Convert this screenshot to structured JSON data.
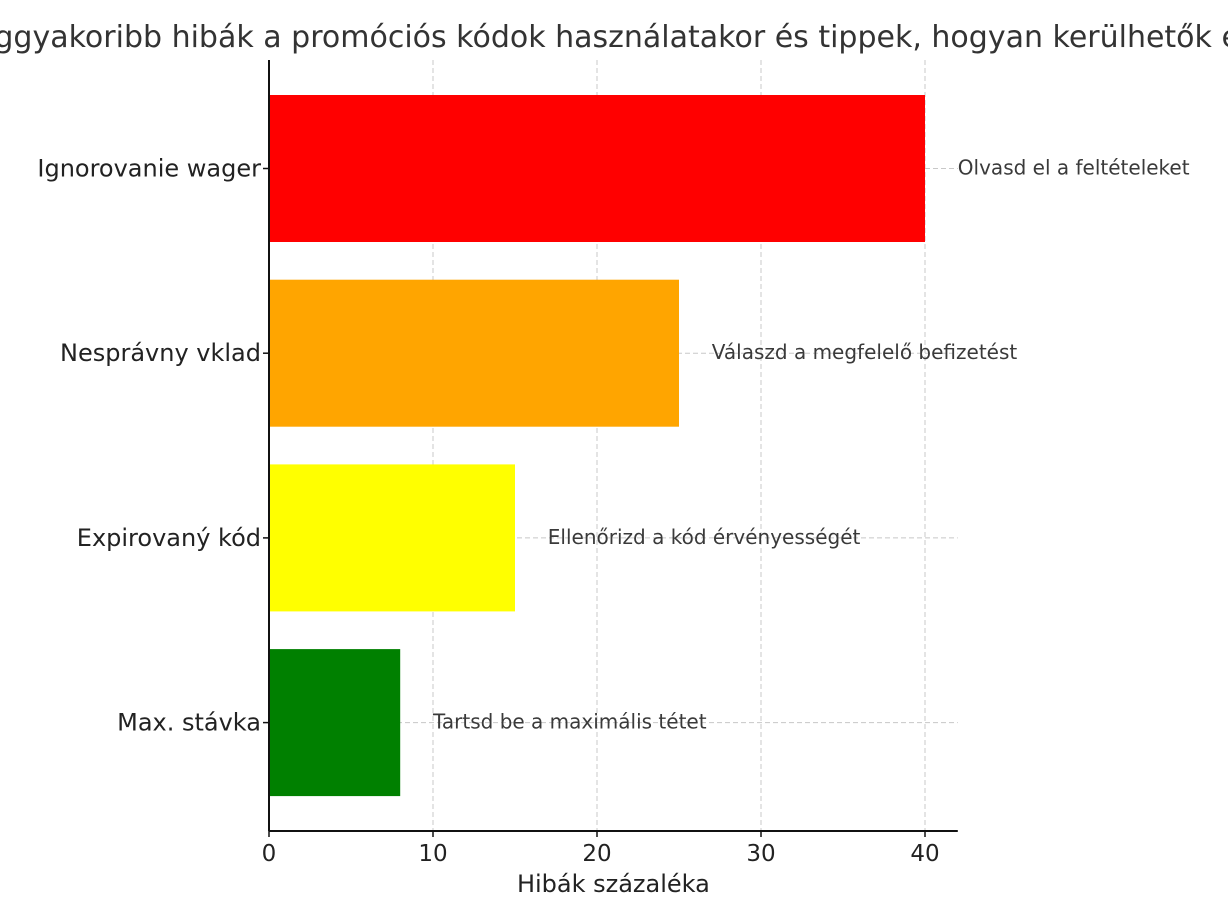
{
  "chart_data": {
    "type": "bar",
    "orientation": "horizontal",
    "title": "Leggyakoribb hibák a promóciós kódok használatakor és tippek, hogyan kerülhetők el",
    "xlabel": "Hibák százaléka",
    "ylabel": "",
    "xlim": [
      0,
      42
    ],
    "xticks": [
      0,
      10,
      20,
      30,
      40
    ],
    "grid": true,
    "categories": [
      "Ignorovanie wager",
      "Nesprávny vklad",
      "Expirovaný kód",
      "Max. stávka"
    ],
    "values": [
      40,
      25,
      15,
      8
    ],
    "colors": [
      "#ff0000",
      "#ffa500",
      "#ffff00",
      "#008000"
    ],
    "annotations": [
      {
        "text": "Olvasd el a feltételeket",
        "x": 42
      },
      {
        "text": "Válaszd a megfelelő befizetést",
        "x": 27
      },
      {
        "text": "Ellenőrizd a kód érvényességét",
        "x": 17
      },
      {
        "text": "Tartsd be a maximális tétet",
        "x": 10
      }
    ]
  }
}
